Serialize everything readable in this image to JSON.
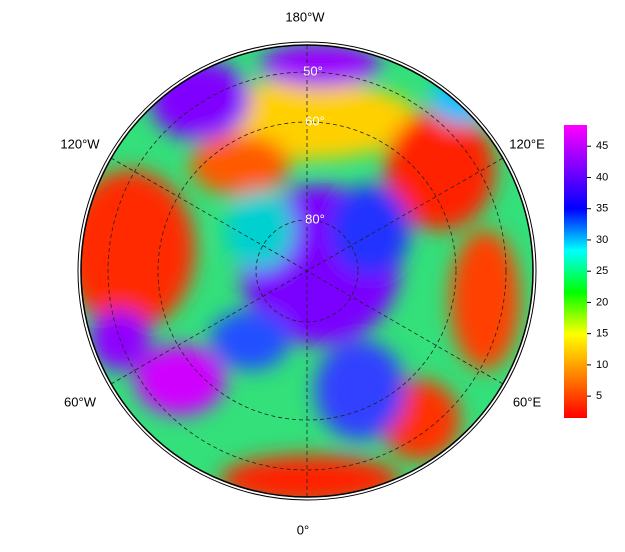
{
  "map": {
    "longitude_labels": [
      "180°W",
      "120°W",
      "120°E",
      "60°W",
      "60°E",
      "0°"
    ],
    "latitude_labels": [
      "50°",
      "60°",
      "80°"
    ]
  },
  "colorbar": {
    "lim": [
      1.5,
      48.4
    ],
    "ticks": [
      5,
      10,
      15,
      20,
      25,
      30,
      35,
      40,
      45
    ],
    "colors": [
      "#ff0000",
      "#ff8000",
      "#ffff00",
      "#00ff00",
      "#00ffff",
      "#0000ff",
      "#8000ff",
      "#ff00ff"
    ]
  }
}
